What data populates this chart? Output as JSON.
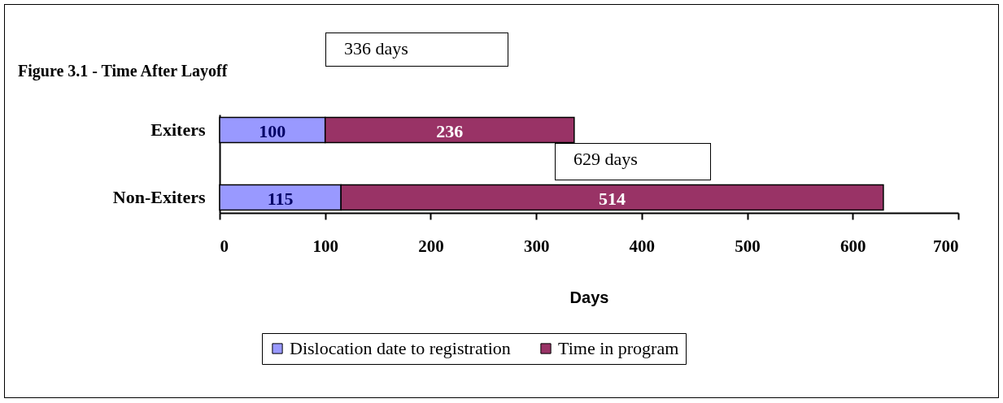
{
  "chart_data": {
    "type": "bar",
    "orientation": "horizontal",
    "stacked": true,
    "title": "Figure 3.1 - Time After Layoff",
    "xlabel": "Days",
    "categories": [
      "Exiters",
      "Non-Exiters"
    ],
    "series": [
      {
        "name": "Dislocation date to registration",
        "color": "#9999ff",
        "values": [
          100,
          115
        ]
      },
      {
        "name": "Time in program",
        "color": "#993366",
        "values": [
          236,
          514
        ]
      }
    ],
    "xlim": [
      0,
      700
    ],
    "xticks": [
      0,
      100,
      200,
      300,
      400,
      500,
      600,
      700
    ],
    "grid": false,
    "legend": "bottom",
    "data_labels": true,
    "annotations": [
      "336 days",
      "629 days"
    ]
  }
}
